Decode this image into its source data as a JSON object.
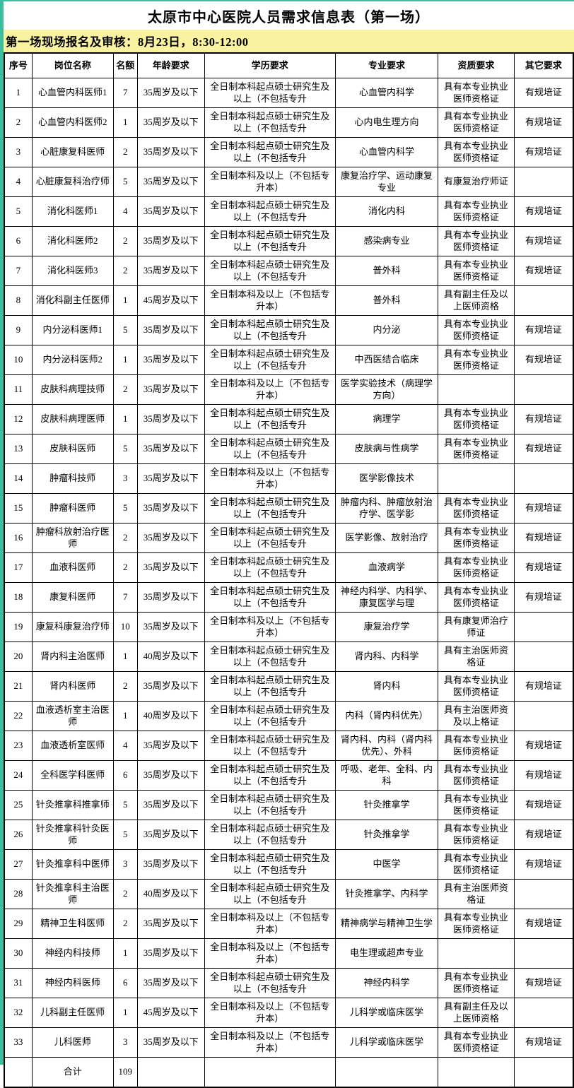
{
  "page": {
    "title": "太原市中心医院人员需求信息表（第一场）"
  },
  "notice": {
    "text": "第一场现场报名及审核：8月23日，8:30-12:00"
  },
  "colors": {
    "accent_teal": "#3cbf9f",
    "notice_background": "#f9f3a1",
    "table_border": "#000000",
    "text": "#000000"
  },
  "table": {
    "headers": [
      "序号",
      "岗位名称",
      "名额",
      "年龄要求",
      "学历要求",
      "专业要求",
      "资质要求",
      "其它要求"
    ],
    "rows": [
      {
        "no": "1",
        "position": "心血管内科医师1",
        "quota": "7",
        "age": "35周岁及以下",
        "education": "全日制本科起点硕士研究生及以上（不包括专升",
        "major": "心血管内科学",
        "qualification": "具有本专业执业医师资格证",
        "other": "有规培证"
      },
      {
        "no": "2",
        "position": "心血管内科医师2",
        "quota": "1",
        "age": "35周岁及以下",
        "education": "全日制本科起点硕士研究生及以上（不包括专升",
        "major": "心内电生理方向",
        "qualification": "具有本专业执业医师资格证",
        "other": "有规培证"
      },
      {
        "no": "3",
        "position": "心脏康复科医师",
        "quota": "2",
        "age": "35周岁及以下",
        "education": "全日制本科起点硕士研究生及以上（不包括专升",
        "major": "心血管内科学",
        "qualification": "具有本专业执业医师资格证",
        "other": "有规培证"
      },
      {
        "no": "4",
        "position": "心脏康复科治疗师",
        "quota": "5",
        "age": "35周岁及以下",
        "education": "全日制本科及以上（不包括专升本）",
        "major": "康复治疗学、运动康复专业",
        "qualification": "有康复治疗师证",
        "other": ""
      },
      {
        "no": "5",
        "position": "消化科医师1",
        "quota": "4",
        "age": "35周岁及以下",
        "education": "全日制本科起点硕士研究生及以上（不包括专升",
        "major": "消化内科",
        "qualification": "具有本专业执业医师资格证",
        "other": "有规培证"
      },
      {
        "no": "6",
        "position": "消化科医师2",
        "quota": "2",
        "age": "35周岁及以下",
        "education": "全日制本科起点硕士研究生及以上（不包括专升",
        "major": "感染病专业",
        "qualification": "具有本专业执业医师资格证",
        "other": "有规培证"
      },
      {
        "no": "7",
        "position": "消化科医师3",
        "quota": "2",
        "age": "35周岁及以下",
        "education": "全日制本科起点硕士研究生及以上（不包括专升",
        "major": "普外科",
        "qualification": "具有本专业执业医师资格证",
        "other": "有规培证"
      },
      {
        "no": "8",
        "position": "消化科副主任医师",
        "quota": "1",
        "age": "45周岁及以下",
        "education": "全日制本科及以上（不包括专升本）",
        "major": "普外科",
        "qualification": "具有副主任及以上医师资格",
        "other": ""
      },
      {
        "no": "9",
        "position": "内分泌科医师1",
        "quota": "5",
        "age": "35周岁及以下",
        "education": "全日制本科起点硕士研究生及以上（不包括专升",
        "major": "内分泌",
        "qualification": "具有本专业执业医师资格证",
        "other": "有规培证"
      },
      {
        "no": "10",
        "position": "内分泌科医师2",
        "quota": "1",
        "age": "35周岁及以下",
        "education": "全日制本科起点硕士研究生及以上（不包括专升",
        "major": "中西医结合临床",
        "qualification": "具有本专业执业医师资格证",
        "other": "有规培证"
      },
      {
        "no": "11",
        "position": "皮肤科病理技师",
        "quota": "2",
        "age": "35周岁及以下",
        "education": "全日制本科及以上（不包括专升本）",
        "major": "医学实验技术（病理学方向）",
        "qualification": "",
        "other": ""
      },
      {
        "no": "12",
        "position": "皮肤科病理医师",
        "quota": "1",
        "age": "35周岁及以下",
        "education": "全日制本科起点硕士研究生及以上（不包括专升",
        "major": "病理学",
        "qualification": "具有本专业执业医师资格证",
        "other": "有规培证"
      },
      {
        "no": "13",
        "position": "皮肤科医师",
        "quota": "5",
        "age": "35周岁及以下",
        "education": "全日制本科起点硕士研究生及以上（不包括专升",
        "major": "皮肤病与性病学",
        "qualification": "具有本专业执业医师资格证",
        "other": "有规培证"
      },
      {
        "no": "14",
        "position": "肿瘤科技师",
        "quota": "3",
        "age": "35周岁及以下",
        "education": "全日制本科及以上（不包括专升本）",
        "major": "医学影像技术",
        "qualification": "",
        "other": ""
      },
      {
        "no": "15",
        "position": "肿瘤科医师",
        "quota": "5",
        "age": "35周岁及以下",
        "education": "全日制本科起点硕士研究生及以上（不包括专升",
        "major": "肿瘤内科、肿瘤放射治疗学、医学影",
        "qualification": "具有本专业执业医师资格证",
        "other": "有规培证"
      },
      {
        "no": "16",
        "position": "肿瘤科放射治疗医师",
        "quota": "2",
        "age": "35周岁及以下",
        "education": "全日制本科起点硕士研究生及以上（不包括专升",
        "major": "医学影像、放射治疗",
        "qualification": "具有本专业执业医师资格证",
        "other": "有规培证"
      },
      {
        "no": "17",
        "position": "血液科医师",
        "quota": "2",
        "age": "35周岁及以下",
        "education": "全日制本科起点硕士研究生及以上（不包括专升",
        "major": "血液病学",
        "qualification": "具有本专业执业医师资格证",
        "other": "有规培证"
      },
      {
        "no": "18",
        "position": "康复科医师",
        "quota": "7",
        "age": "35周岁及以下",
        "education": "全日制本科起点硕士研究生及以上（不包括专升",
        "major": "神经内科学、内科学、康复医学与理",
        "qualification": "具有本专业执业医师资格证",
        "other": "有规培证"
      },
      {
        "no": "19",
        "position": "康复科康复治疗师",
        "quota": "10",
        "age": "35周岁及以下",
        "education": "全日制本科及以上（不包括专升本）",
        "major": "康复治疗学",
        "qualification": "具有康复师治疗师证",
        "other": ""
      },
      {
        "no": "20",
        "position": "肾内科主治医师",
        "quota": "1",
        "age": "40周岁及以下",
        "education": "全日制本科起点硕士研究生及以上（不包括专升",
        "major": "肾内科、内科学",
        "qualification": "具有主治医师资格证",
        "other": ""
      },
      {
        "no": "21",
        "position": "肾内科医师",
        "quota": "2",
        "age": "35周岁及以下",
        "education": "全日制本科起点硕士研究生及以上（不包括专升",
        "major": "肾内科",
        "qualification": "具有本专业执业医师资格证",
        "other": "有规培证"
      },
      {
        "no": "22",
        "position": "血液透析室主治医师",
        "quota": "1",
        "age": "40周岁及以下",
        "education": "全日制本科起点硕士研究生及以上（不包括专升",
        "major": "内科（肾内科优先）",
        "qualification": "具有主治医师资及以上格证",
        "other": ""
      },
      {
        "no": "23",
        "position": "血液透析室医师",
        "quota": "4",
        "age": "35周岁及以下",
        "education": "全日制本科起点硕士研究生及以上（不包括专升",
        "major": "肾内科、内科（肾内科优先）、外科",
        "qualification": "具有本专业执业医师资格证",
        "other": "有规培证"
      },
      {
        "no": "24",
        "position": "全科医学科医师",
        "quota": "6",
        "age": "35周岁及以下",
        "education": "全日制本科起点硕士研究生及以上（不包括专升",
        "major": "呼吸、老年、全科、内科",
        "qualification": "具有本专业执业医师资格证",
        "other": "有规培证"
      },
      {
        "no": "25",
        "position": "针灸推拿科推拿师",
        "quota": "5",
        "age": "35周岁及以下",
        "education": "全日制本科起点硕士研究生及以上（不包括专升",
        "major": "针灸推拿学",
        "qualification": "具有本专业执业医师资格证",
        "other": "有规培证"
      },
      {
        "no": "26",
        "position": "针灸推拿科针灸医师",
        "quota": "5",
        "age": "35周岁及以下",
        "education": "全日制本科起点硕士研究生及以上（不包括专升",
        "major": "针灸推拿学",
        "qualification": "具有本专业执业医师资格证",
        "other": "有规培证"
      },
      {
        "no": "27",
        "position": "针灸推拿科中医师",
        "quota": "3",
        "age": "35周岁及以下",
        "education": "全日制本科起点硕士研究生及以上（不包括专升",
        "major": "中医学",
        "qualification": "具有本专业执业医师资格证",
        "other": "有规培证"
      },
      {
        "no": "28",
        "position": "针灸推拿科主治医师",
        "quota": "2",
        "age": "40周岁及以下",
        "education": "全日制本科起点硕士研究生及以上（不包括专升",
        "major": "针灸推拿学、内科学",
        "qualification": "具有主治医师资格证",
        "other": ""
      },
      {
        "no": "29",
        "position": "精神卫生科医师",
        "quota": "2",
        "age": "35周岁及以下",
        "education": "全日制本科及以上（不包括专升本）",
        "major": "精神病学与精神卫生学",
        "qualification": "具有本专业执业医师资格证",
        "other": "有规培证"
      },
      {
        "no": "30",
        "position": "神经内科技师",
        "quota": "1",
        "age": "35周岁及以下",
        "education": "全日制本科及以上（不包括专升本）",
        "major": "电生理或超声专业",
        "qualification": "",
        "other": ""
      },
      {
        "no": "31",
        "position": "神经内科医师",
        "quota": "6",
        "age": "35周岁及以下",
        "education": "全日制本科起点硕士研究生及以上（不包括专升",
        "major": "神经内科学",
        "qualification": "具有本专业执业医师资格证",
        "other": "有规培证"
      },
      {
        "no": "32",
        "position": "儿科副主任医师",
        "quota": "1",
        "age": "45周岁及以下",
        "education": "全日制本科及以上（不包括专升本）",
        "major": "儿科学或临床医学",
        "qualification": "具有副主任及以上医师资格",
        "other": ""
      },
      {
        "no": "33",
        "position": "儿科医师",
        "quota": "3",
        "age": "35周岁及以下",
        "education": "全日制本科及以上（不包括专升本）",
        "major": "儿科学或临床医学",
        "qualification": "具有本专业执业医师资格证",
        "other": "有规培证"
      }
    ],
    "total_row": {
      "no": "",
      "position": "合计",
      "quota": "109",
      "age": "",
      "education": "",
      "major": "",
      "qualification": "",
      "other": ""
    }
  }
}
